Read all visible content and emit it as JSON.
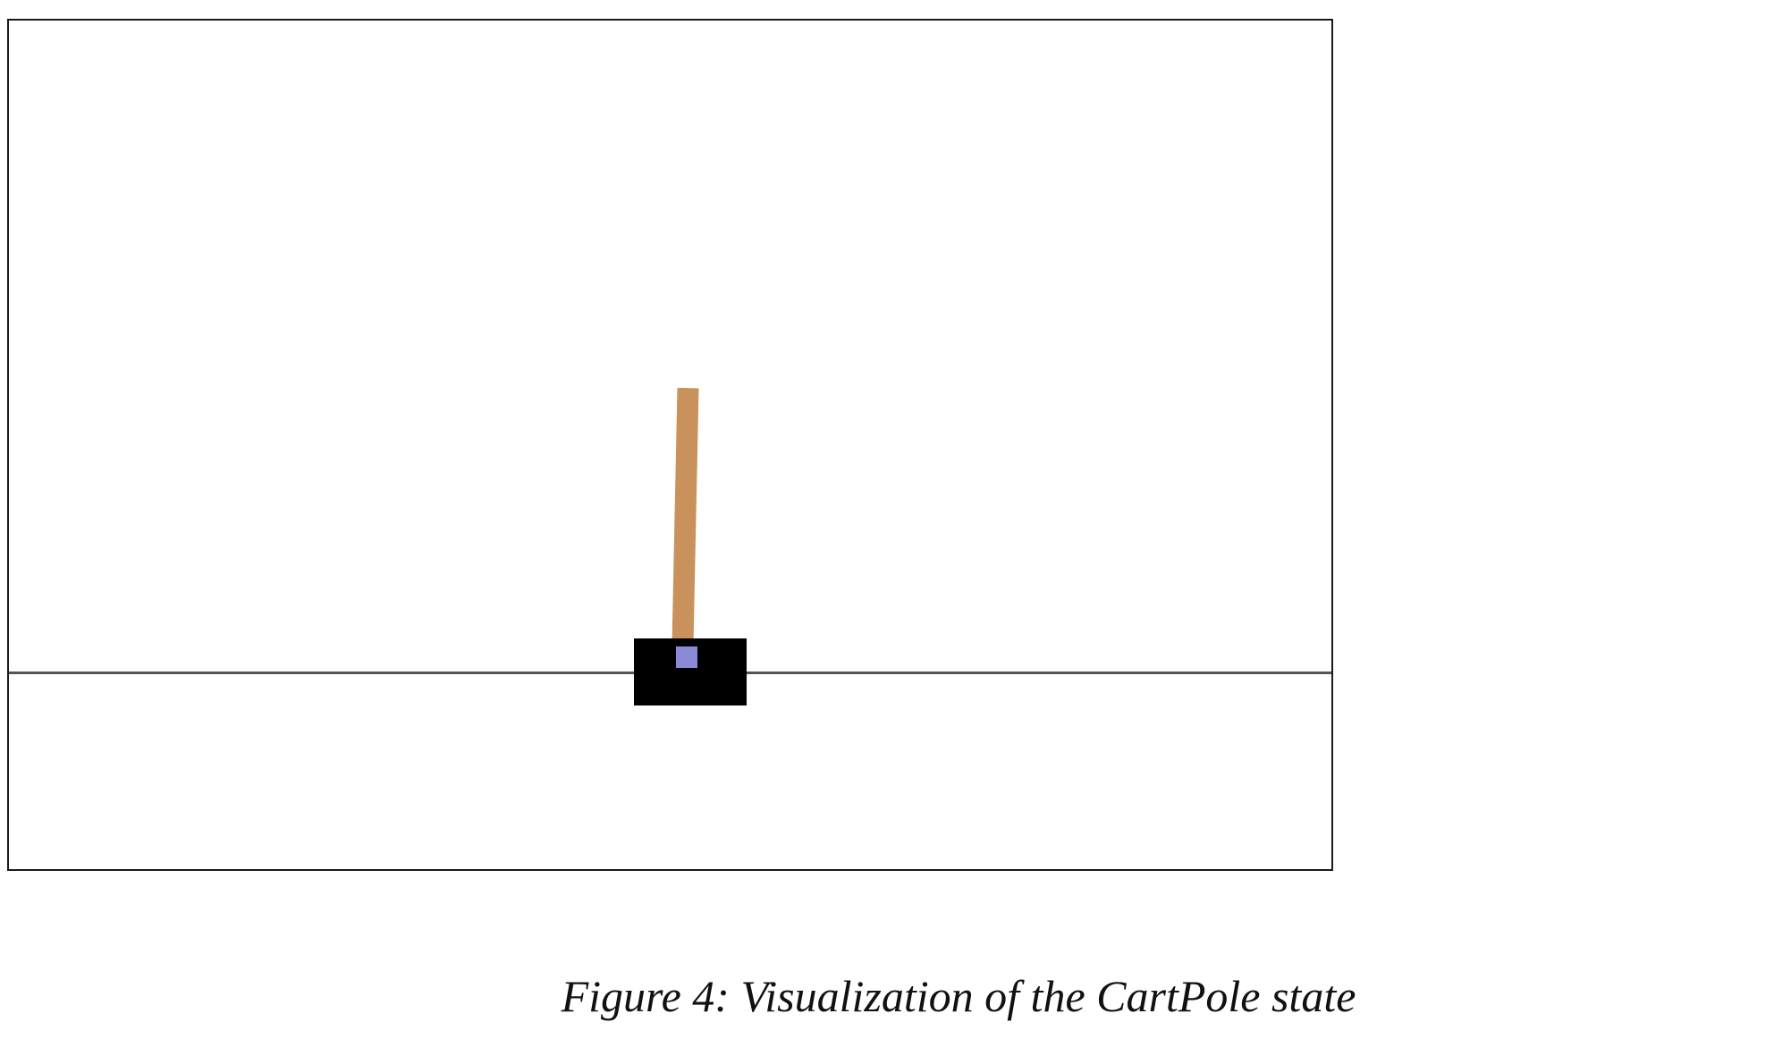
{
  "figure": {
    "caption": "Figure 4: Visualization of the CartPole state"
  },
  "scene": {
    "background_color": "#ffffff",
    "frame_color": "#1a1a1a",
    "track_color": "#555555",
    "cart_color": "#000000",
    "pole_color": "#c9915b",
    "axle_color": "#8a8ad6"
  }
}
